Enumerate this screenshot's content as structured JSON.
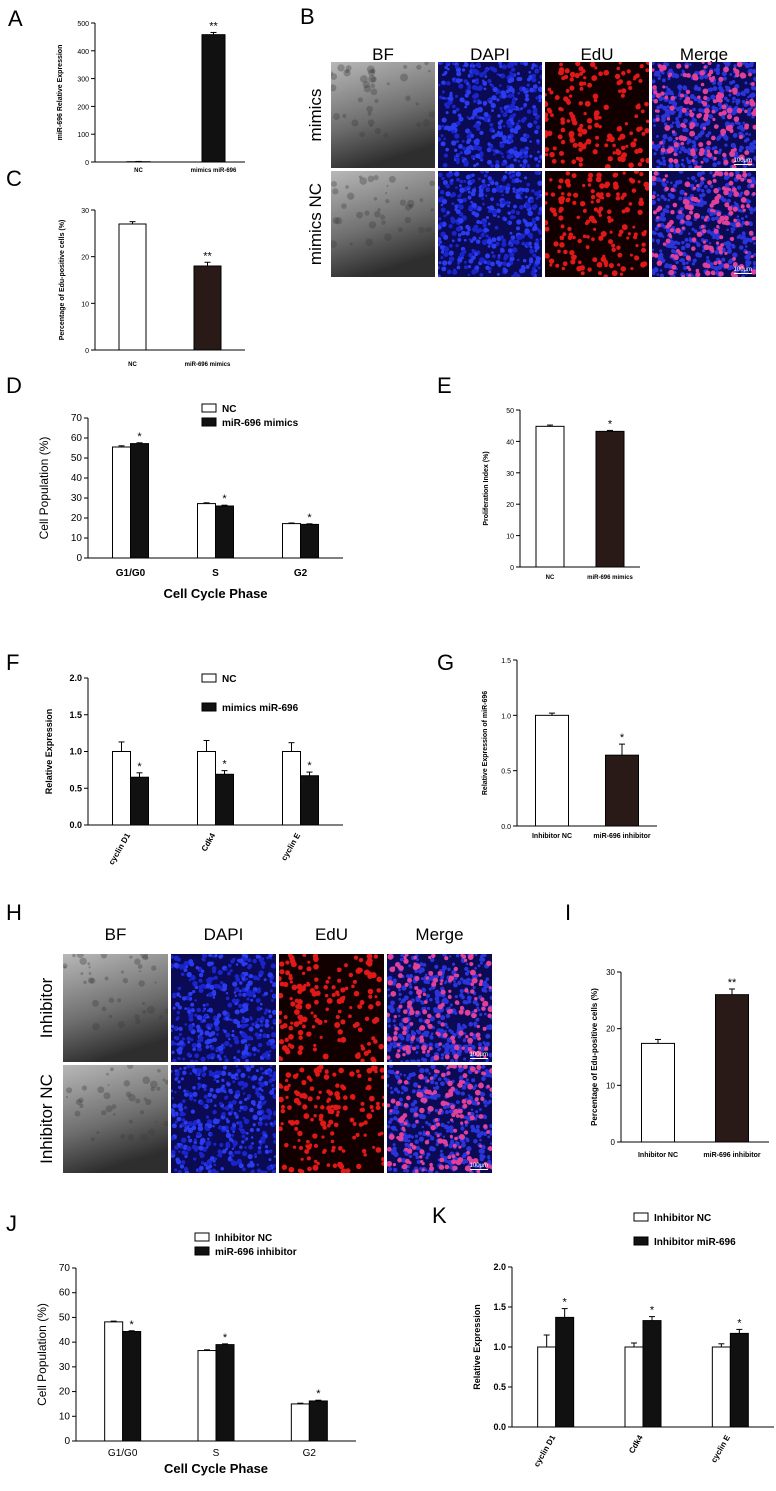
{
  "panels": {
    "A": {
      "letter": "A"
    },
    "B": {
      "letter": "B"
    },
    "C": {
      "letter": "C"
    },
    "D": {
      "letter": "D"
    },
    "E": {
      "letter": "E"
    },
    "F": {
      "letter": "F"
    },
    "G": {
      "letter": "G"
    },
    "H": {
      "letter": "H"
    },
    "I": {
      "letter": "I"
    },
    "J": {
      "letter": "J"
    },
    "K": {
      "letter": "K"
    }
  },
  "micrographs_B": {
    "columns": [
      "BF",
      "DAPI",
      "EdU",
      "Merge"
    ],
    "rows": [
      "mimics",
      "mimics NC"
    ],
    "scale_label": "100μm"
  },
  "micrographs_H": {
    "columns": [
      "BF",
      "DAPI",
      "EdU",
      "Merge"
    ],
    "rows": [
      "Inhibitor",
      "Inhibitor NC"
    ],
    "scale_label": "100μm"
  },
  "colors": {
    "black_bar": "#111111",
    "dark_bar": "#2a1a17",
    "white_bar": "#ffffff",
    "dapi": "#1a24c8",
    "edu": "#e01818"
  },
  "chart_data": [
    {
      "id": "A",
      "type": "bar",
      "categories": [
        "NC",
        "mimics miR-696"
      ],
      "values": [
        1,
        458
      ],
      "errors": [
        1,
        8
      ],
      "sig": [
        "",
        "**"
      ],
      "fills": [
        "white",
        "black"
      ],
      "ylabel": "miR-696 Relative Expression",
      "ylim": [
        0,
        500
      ],
      "yticks": [
        0,
        100,
        200,
        300,
        400,
        500
      ]
    },
    {
      "id": "C",
      "type": "bar",
      "categories": [
        "NC",
        "miR-696 mimics"
      ],
      "values": [
        27,
        18
      ],
      "errors": [
        0.5,
        0.8
      ],
      "sig": [
        "",
        "**"
      ],
      "fills": [
        "white",
        "dark"
      ],
      "ylabel": "Percentage of Edu-positive cells (%)",
      "ylim": [
        0,
        30
      ],
      "yticks": [
        0,
        10,
        20,
        30
      ]
    },
    {
      "id": "D",
      "type": "bar",
      "categories": [
        "G1/G0",
        "S",
        "G2"
      ],
      "series": [
        {
          "name": "NC",
          "values": [
            55.5,
            27.2,
            17.2
          ],
          "errors": [
            0.6,
            0.4,
            0.3
          ]
        },
        {
          "name": "miR-696 mimics",
          "values": [
            57.2,
            26.0,
            16.8
          ],
          "errors": [
            0.4,
            0.4,
            0.3
          ]
        }
      ],
      "sig": [
        "*",
        "*",
        "*"
      ],
      "ylabel": "Cell Population (%)",
      "xlabel": "Cell Cycle Phase",
      "ylim": [
        0,
        70
      ],
      "yticks": [
        0,
        10,
        20,
        30,
        40,
        50,
        60,
        70
      ],
      "legend": "top-right"
    },
    {
      "id": "E",
      "type": "bar",
      "categories": [
        "NC",
        "miR-696 mimics"
      ],
      "values": [
        44.8,
        43.2
      ],
      "errors": [
        0.4,
        0.3
      ],
      "sig": [
        "",
        "*"
      ],
      "fills": [
        "white",
        "dark"
      ],
      "ylabel": "Proliferation Index (%)",
      "ylim": [
        0,
        50
      ],
      "yticks": [
        0,
        10,
        20,
        30,
        40,
        50
      ]
    },
    {
      "id": "F",
      "type": "bar",
      "categories": [
        "cyclin D1",
        "Cdk4",
        "cyclin E"
      ],
      "series": [
        {
          "name": "NC",
          "values": [
            1.0,
            1.0,
            1.0
          ],
          "errors": [
            0.13,
            0.15,
            0.12
          ]
        },
        {
          "name": "mimics miR-696",
          "values": [
            0.65,
            0.69,
            0.67
          ],
          "errors": [
            0.06,
            0.05,
            0.05
          ]
        }
      ],
      "sig": [
        "*",
        "*",
        "*"
      ],
      "ylabel": "Relative  Expression",
      "ylim": [
        0,
        2.0
      ],
      "yticks": [
        0.0,
        0.5,
        1.0,
        1.5,
        2.0
      ],
      "legend": "top-right"
    },
    {
      "id": "G",
      "type": "bar",
      "categories": [
        "Inhibitor NC",
        "miR-696 inhibitor"
      ],
      "values": [
        1.0,
        0.64
      ],
      "errors": [
        0.02,
        0.1
      ],
      "sig": [
        "",
        "*"
      ],
      "fills": [
        "white",
        "dark"
      ],
      "ylabel": "Relative Expression of miR-696",
      "ylim": [
        0,
        1.5
      ],
      "yticks": [
        0.0,
        0.5,
        1.0,
        1.5
      ]
    },
    {
      "id": "I",
      "type": "bar",
      "categories": [
        "Inhibitor NC",
        "miR-696 inhibitor"
      ],
      "values": [
        17.4,
        26
      ],
      "errors": [
        0.7,
        1.0
      ],
      "sig": [
        "",
        "**"
      ],
      "fills": [
        "white",
        "dark"
      ],
      "ylabel": "Percentage of Edu-positive cells (%)",
      "ylim": [
        0,
        30
      ],
      "yticks": [
        0,
        10,
        20,
        30
      ]
    },
    {
      "id": "J",
      "type": "bar",
      "categories": [
        "G1/G0",
        "S",
        "G2"
      ],
      "series": [
        {
          "name": "Inhibitor NC",
          "values": [
            48.2,
            36.6,
            15.0
          ],
          "errors": [
            0.3,
            0.3,
            0.3
          ]
        },
        {
          "name": "miR-696 inhibitor",
          "values": [
            44.3,
            39.0,
            16.2
          ],
          "errors": [
            0.3,
            0.3,
            0.3
          ]
        }
      ],
      "sig": [
        "*",
        "*",
        "*"
      ],
      "ylabel": "Cell Population (%)",
      "xlabel": "Cell Cycle Phase",
      "ylim": [
        0,
        70
      ],
      "yticks": [
        0,
        10,
        20,
        30,
        40,
        50,
        60,
        70
      ],
      "legend": "top-right"
    },
    {
      "id": "K",
      "type": "bar",
      "categories": [
        "cyclin D1",
        "Cdk4",
        "cyclin E"
      ],
      "series": [
        {
          "name": "Inhibitor NC",
          "values": [
            1.0,
            1.0,
            1.0
          ],
          "errors": [
            0.15,
            0.05,
            0.04
          ]
        },
        {
          "name": "Inhibitor miR-696",
          "values": [
            1.37,
            1.33,
            1.17
          ],
          "errors": [
            0.11,
            0.05,
            0.05
          ]
        }
      ],
      "sig": [
        "*",
        "*",
        "*"
      ],
      "ylabel": "Relative  Expression",
      "ylim": [
        0,
        2.0
      ],
      "yticks": [
        0.0,
        0.5,
        1.0,
        1.5,
        2.0
      ],
      "legend": "top-right"
    }
  ]
}
